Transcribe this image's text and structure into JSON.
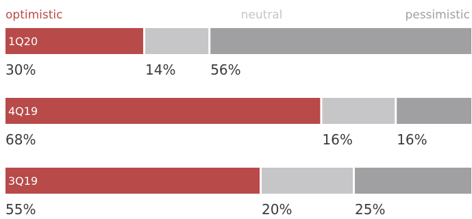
{
  "colors": {
    "optimistic": "#b84a4a",
    "neutral": "#c6c6c8",
    "pessimistic": "#a0a0a3",
    "separator": "#ffffff",
    "text": "#3a3a3a"
  },
  "chart_data": {
    "type": "bar",
    "orientation": "horizontal-stacked-100",
    "categories": [
      "1Q20",
      "4Q19",
      "3Q19"
    ],
    "series": [
      {
        "name": "optimistic",
        "values": [
          30,
          68,
          55
        ]
      },
      {
        "name": "neutral",
        "values": [
          14,
          16,
          20
        ]
      },
      {
        "name": "pessimistic",
        "values": [
          56,
          16,
          25
        ]
      }
    ],
    "value_labels": [
      [
        "30%",
        "14%",
        "56%"
      ],
      [
        "68%",
        "16%",
        "16%"
      ],
      [
        "55%",
        "20%",
        "25%"
      ]
    ],
    "unit": "%",
    "xlim": [
      0,
      100
    ],
    "grid": false,
    "legend": {
      "placement": "top",
      "entries": [
        "optimistic",
        "neutral",
        "pessimistic"
      ]
    }
  }
}
